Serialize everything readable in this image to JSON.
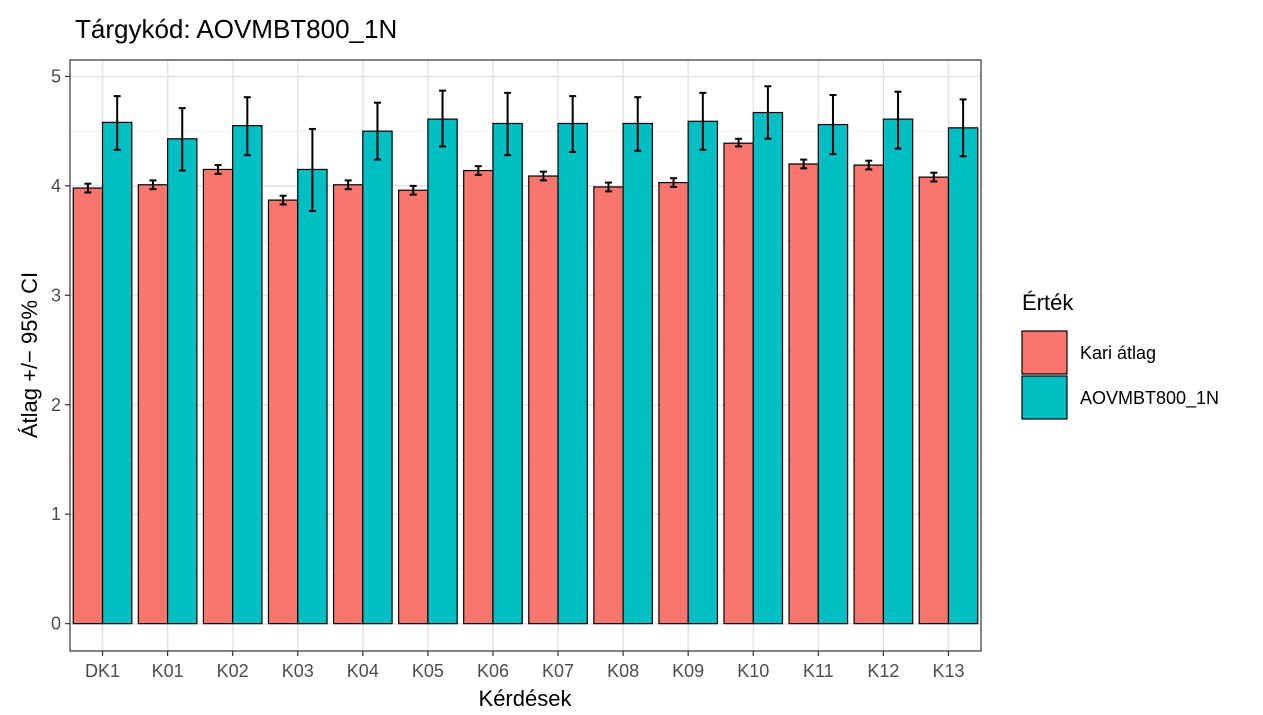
{
  "chart_data": {
    "type": "bar",
    "title": "Tárgykód:  AOVMBT800_1N",
    "xlabel": "Kérdések",
    "ylabel": "Átlag +/− 95% CI",
    "ylim": [
      -0.25,
      5.15
    ],
    "yticks": [
      0,
      1,
      2,
      3,
      4,
      5
    ],
    "grid": true,
    "legend_position": "right",
    "legend_title": "Érték",
    "categories": [
      "DK1",
      "K01",
      "K02",
      "K03",
      "K04",
      "K05",
      "K06",
      "K07",
      "K08",
      "K09",
      "K10",
      "K11",
      "K12",
      "K13"
    ],
    "series": [
      {
        "name": "Kari átlag",
        "color": "#F8766D",
        "values": [
          3.98,
          4.01,
          4.15,
          3.87,
          4.01,
          3.96,
          4.14,
          4.09,
          3.99,
          4.03,
          4.39,
          4.2,
          4.19,
          4.08
        ],
        "ci_low": [
          3.94,
          3.97,
          4.11,
          3.83,
          3.97,
          3.92,
          4.1,
          4.05,
          3.95,
          3.99,
          4.36,
          4.16,
          4.15,
          4.04
        ],
        "ci_high": [
          4.02,
          4.05,
          4.19,
          3.91,
          4.05,
          4.0,
          4.18,
          4.13,
          4.03,
          4.07,
          4.43,
          4.24,
          4.23,
          4.12
        ]
      },
      {
        "name": "AOVMBT800_1N",
        "color": "#00BFC4",
        "values": [
          4.58,
          4.43,
          4.55,
          4.15,
          4.5,
          4.61,
          4.57,
          4.57,
          4.57,
          4.59,
          4.67,
          4.56,
          4.61,
          4.53
        ],
        "ci_low": [
          4.33,
          4.14,
          4.28,
          3.77,
          4.24,
          4.36,
          4.28,
          4.31,
          4.32,
          4.33,
          4.43,
          4.29,
          4.34,
          4.27
        ],
        "ci_high": [
          4.82,
          4.71,
          4.81,
          4.52,
          4.76,
          4.87,
          4.85,
          4.82,
          4.81,
          4.85,
          4.91,
          4.83,
          4.86,
          4.79
        ]
      }
    ]
  }
}
